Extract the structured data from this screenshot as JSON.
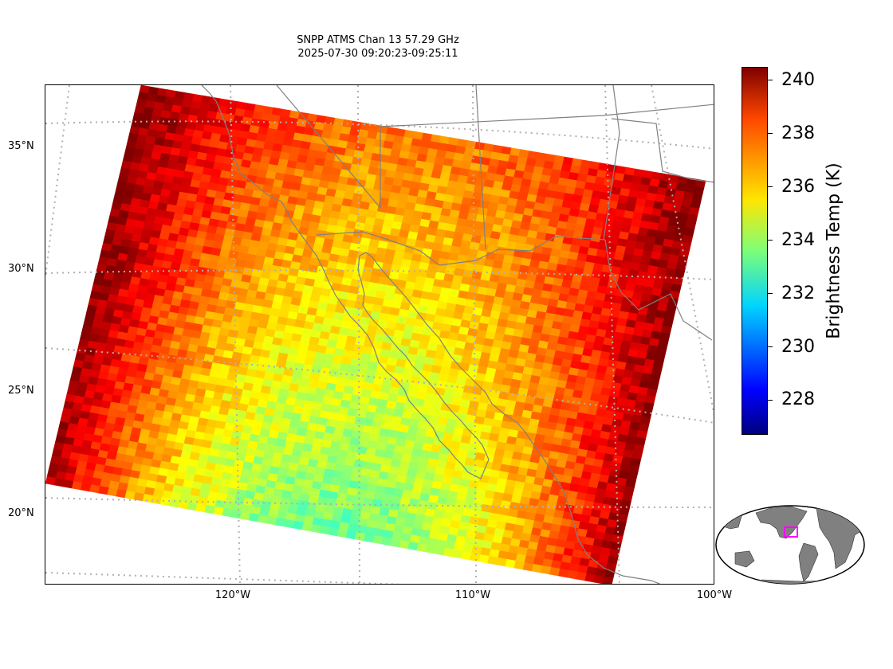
{
  "title": {
    "line1": "SNPP ATMS Chan 13 57.29 GHz",
    "line2": "2025-07-30 09:20:23-09:25:11"
  },
  "map": {
    "lat_labels": [
      "35°N",
      "30°N",
      "25°N",
      "20°N"
    ],
    "lon_labels": [
      "120°W",
      "110°W",
      "100°W"
    ],
    "grid_color": "#b0b0b0",
    "coastline_color": "#808080"
  },
  "colorbar": {
    "label": "Brightness Temp (K)",
    "ticks": [
      "240",
      "238",
      "236",
      "234",
      "232",
      "230",
      "228"
    ],
    "range": [
      226.7,
      240.5
    ],
    "colormap": "jet"
  },
  "inset": {
    "land_color": "#808080",
    "box_color": "#ff00ff"
  }
}
